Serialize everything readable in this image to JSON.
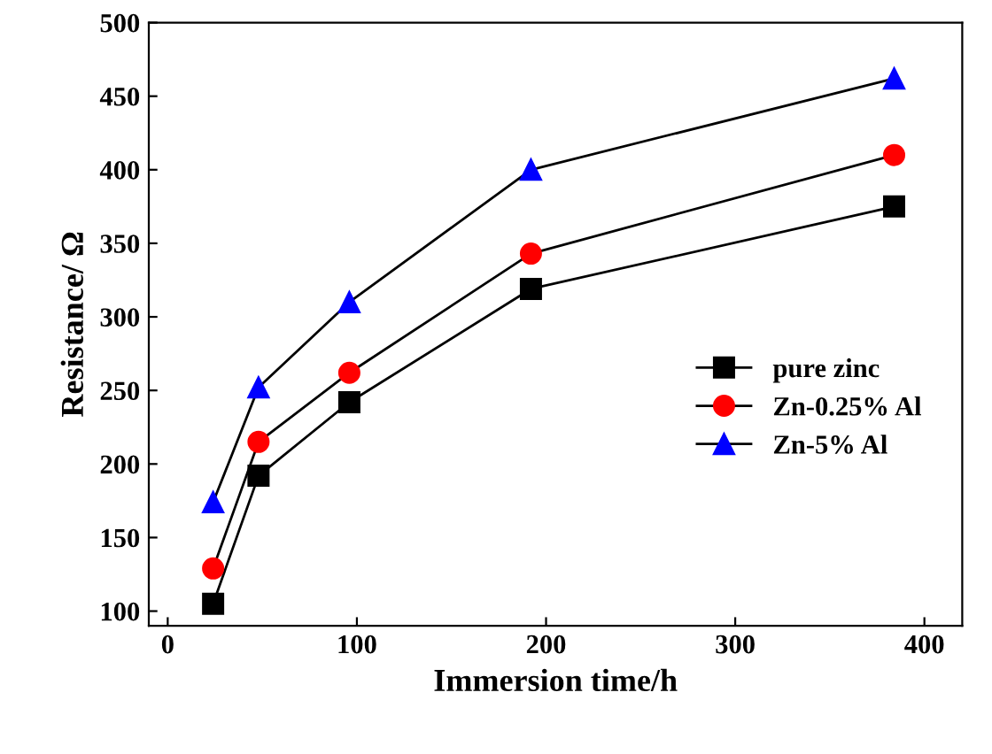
{
  "chart_data": {
    "type": "line",
    "xlabel": "Immersion time/h",
    "ylabel": "Resistance/ Ω",
    "x": [
      24,
      48,
      96,
      192,
      384
    ],
    "series": [
      {
        "name": "pure zinc",
        "color": "#000000",
        "marker": "square",
        "values": [
          105,
          192,
          242,
          319,
          375
        ]
      },
      {
        "name": "Zn-0.25% Al",
        "color": "#ff0000",
        "marker": "circle",
        "values": [
          129,
          215,
          262,
          343,
          410
        ]
      },
      {
        "name": "Zn-5% Al",
        "color": "#0000ff",
        "marker": "triangle",
        "values": [
          174,
          252,
          310,
          400,
          462
        ]
      }
    ],
    "xlim": [
      -10,
      420
    ],
    "xticks": [
      0,
      100,
      200,
      300,
      400
    ],
    "ylim": [
      90,
      500
    ],
    "yticks": [
      100,
      150,
      200,
      250,
      300,
      350,
      400,
      450,
      500
    ],
    "grid": false,
    "legend": "right",
    "line_style": "solid"
  }
}
